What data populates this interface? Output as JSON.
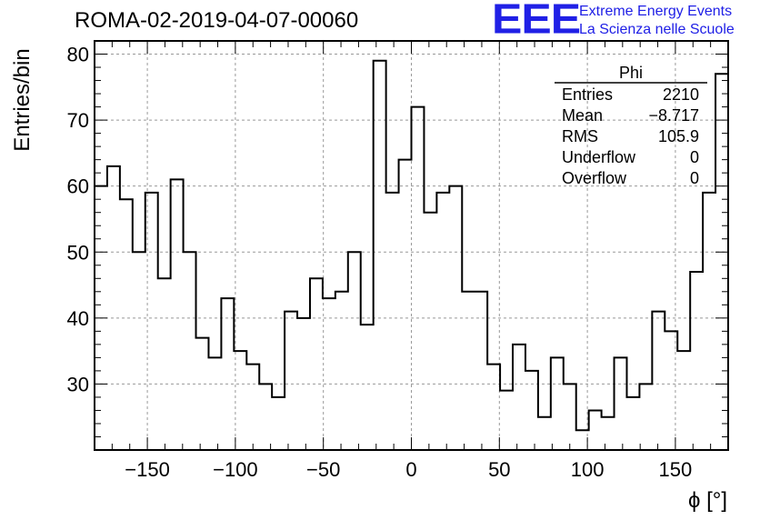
{
  "header": {
    "title": "ROMA-02-2019-04-07-00060",
    "logo_text": "EEE",
    "logo_line1": "Extreme Energy Events",
    "logo_line2": "La Scienza nelle Scuole"
  },
  "colors": {
    "line": "#000000",
    "grid": "#999999",
    "logo": "#2020e6"
  },
  "stats": {
    "name": "Phi",
    "rows": [
      {
        "label": "Entries",
        "value": "2210"
      },
      {
        "label": "Mean",
        "value": "−8.717"
      },
      {
        "label": "RMS",
        "value": "105.9"
      },
      {
        "label": "Underflow",
        "value": "0"
      },
      {
        "label": "Overflow",
        "value": "0"
      }
    ]
  },
  "chart_data": {
    "type": "histogram",
    "title": "ROMA-02-2019-04-07-00060",
    "xlabel": "ϕ [°]",
    "ylabel": "Entries/bin",
    "xlim": [
      -180,
      180
    ],
    "ylim": [
      20,
      82
    ],
    "xticks": [
      -150,
      -100,
      -50,
      0,
      50,
      100,
      150
    ],
    "yticks": [
      30,
      40,
      50,
      60,
      70,
      80
    ],
    "grid": true,
    "bin_width": 7.2,
    "bin_edges_start": -180,
    "values": [
      60,
      63,
      58,
      50,
      59,
      46,
      61,
      50,
      37,
      34,
      43,
      35,
      33,
      30,
      28,
      41,
      40,
      46,
      43,
      44,
      50,
      39,
      79,
      59,
      64,
      72,
      56,
      59,
      60,
      44,
      44,
      33,
      29,
      36,
      32,
      25,
      34,
      30,
      23,
      26,
      25,
      34,
      28,
      30,
      41,
      38,
      35,
      47,
      59,
      77
    ]
  }
}
